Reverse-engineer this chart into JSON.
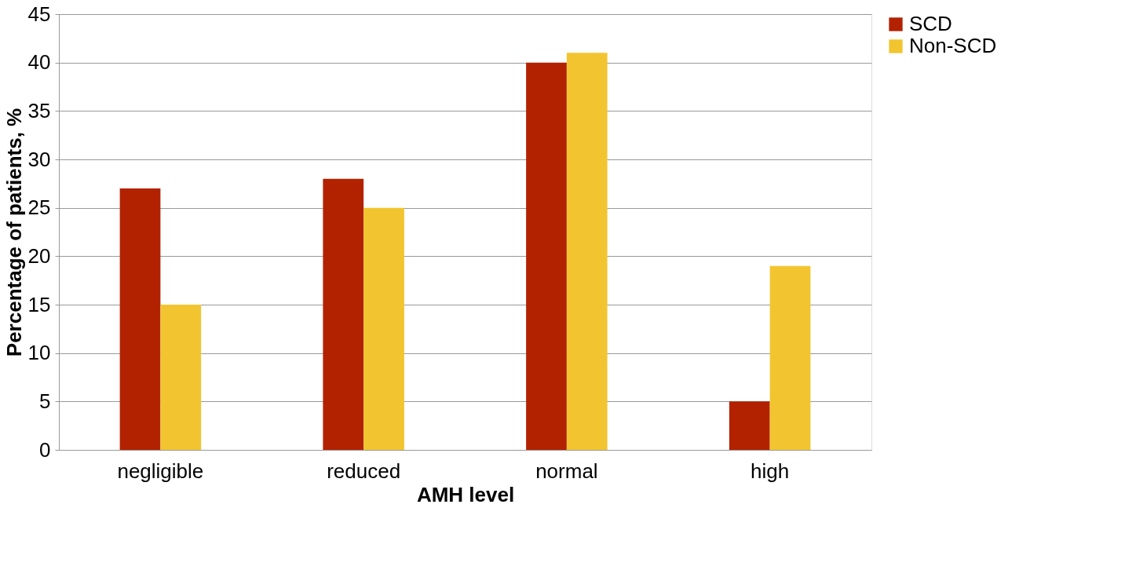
{
  "chart_data": {
    "type": "bar",
    "xlabel": "AMH level",
    "ylabel": "Percentage of patients, %",
    "categories": [
      "negligible",
      "reduced",
      "normal",
      "high"
    ],
    "series": [
      {
        "name": "SCD",
        "color": "#b22200",
        "values": [
          27,
          28,
          40,
          5
        ]
      },
      {
        "name": "Non-SCD",
        "color": "#f2c530",
        "values": [
          15,
          25,
          41,
          19
        ]
      }
    ],
    "ylim": [
      0,
      45
    ],
    "yticks": [
      0,
      5,
      10,
      15,
      20,
      25,
      30,
      35,
      40,
      45
    ],
    "grid": "y",
    "legend": "right"
  }
}
